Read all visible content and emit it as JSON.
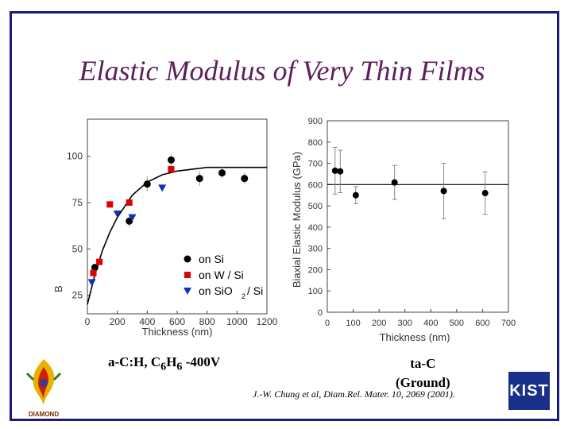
{
  "slide": {
    "title": "Elastic Modulus of Very Thin Films"
  },
  "captions": {
    "left": {
      "main": "a-C:H, C",
      "sub1": "6",
      "mid": "H",
      "sub2": "6",
      "tail": " -400V"
    },
    "right": {
      "line1": "ta-C",
      "line2": "(Ground)"
    }
  },
  "citation": "J.-W. Chung et al, Diam.Rel. Mater. 10, 2069 (2001).",
  "logos": {
    "left_text": "DIAMOND",
    "right_text": "KIST"
  },
  "colors": {
    "title": "#5c1f5c",
    "frame": "#1a1a7a",
    "on_si": "#000000",
    "on_w_si": "#e00000",
    "on_sio2_si": "#1030c0"
  },
  "chart_data": [
    {
      "type": "scatter",
      "title": "",
      "xlabel": "Thickness (nm)",
      "ylabel": "B",
      "xlim": [
        0,
        1200
      ],
      "ylim": [
        15,
        120
      ],
      "xticks": [
        0,
        200,
        400,
        600,
        800,
        1000,
        1200
      ],
      "yticks": [
        25,
        50,
        75,
        100
      ],
      "legend_position": "bottom-right",
      "legend_labels": [
        "on Si",
        "on W / Si",
        "on SiO",
        "2",
        "/ Si"
      ],
      "series": [
        {
          "name": "on Si",
          "marker": "circle",
          "x": [
            50,
            280,
            400,
            560,
            750,
            900,
            1050
          ],
          "y": [
            40,
            65,
            85,
            98,
            88,
            91,
            88
          ],
          "err": [
            0,
            3,
            4,
            3,
            4,
            3,
            3
          ]
        },
        {
          "name": "on W / Si",
          "marker": "square",
          "x": [
            40,
            80,
            150,
            280,
            560
          ],
          "y": [
            37,
            43,
            74,
            75,
            93
          ],
          "err": [
            0,
            0,
            0,
            0,
            0
          ]
        },
        {
          "name": "on SiO2 / Si",
          "marker": "triangle-down",
          "x": [
            30,
            200,
            300,
            500
          ],
          "y": [
            32,
            69,
            67,
            83
          ],
          "err": [
            0,
            0,
            0,
            0
          ]
        }
      ],
      "fit_curve": {
        "x": [
          0,
          50,
          100,
          150,
          200,
          300,
          400,
          500,
          600,
          800,
          1000,
          1200
        ],
        "y": [
          20,
          36,
          49,
          59,
          67,
          79,
          86,
          90,
          92,
          94,
          94,
          94
        ]
      }
    },
    {
      "type": "scatter",
      "title": "",
      "xlabel": "Thickness (nm)",
      "ylabel": "Biaxial Elastic Modulus (GPa)",
      "xlim": [
        0,
        700
      ],
      "ylim": [
        0,
        900
      ],
      "xticks": [
        0,
        100,
        200,
        300,
        400,
        500,
        600,
        700
      ],
      "yticks": [
        0,
        100,
        200,
        300,
        400,
        500,
        600,
        700,
        800,
        900
      ],
      "series": [
        {
          "name": "",
          "x": [
            30,
            50,
            110,
            260,
            450,
            610
          ],
          "y": [
            665,
            662,
            550,
            610,
            570,
            560
          ],
          "err": [
            110,
            100,
            40,
            80,
            130,
            100
          ]
        }
      ],
      "fit_line": {
        "y": 600
      }
    }
  ]
}
